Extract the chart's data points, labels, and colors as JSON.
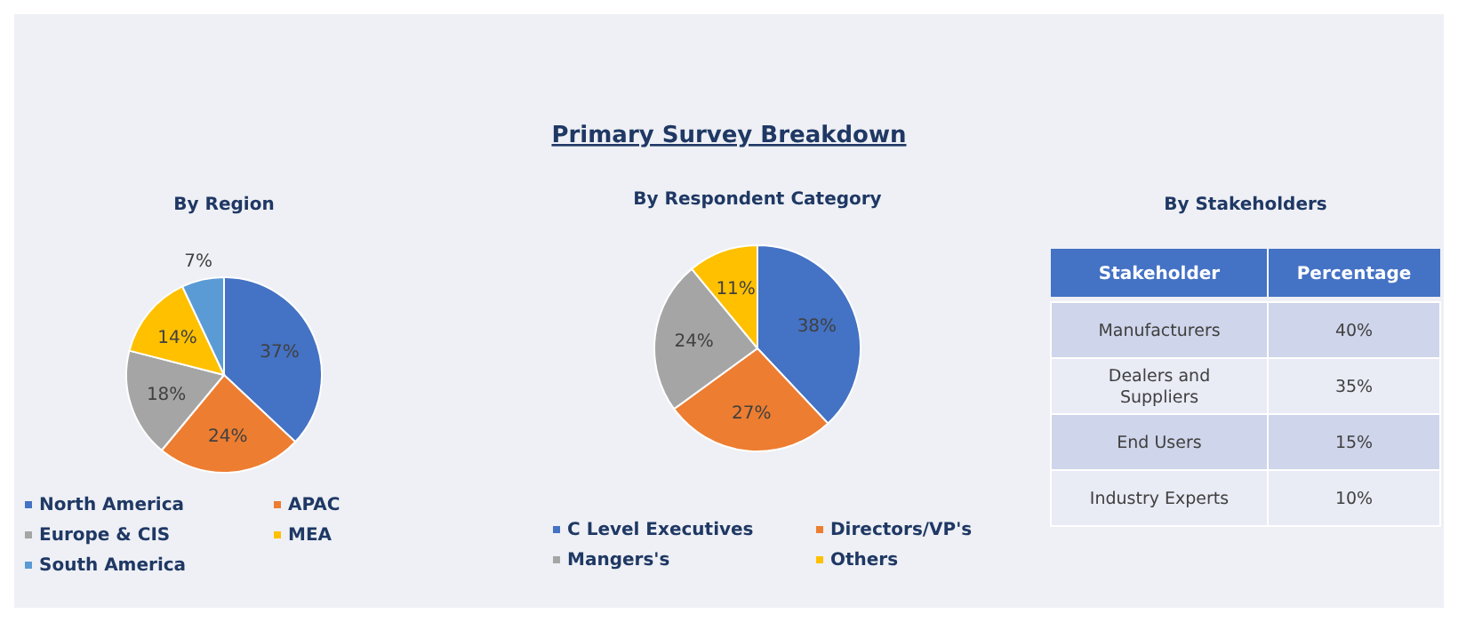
{
  "chart_data": [
    {
      "type": "pie",
      "title": "By Region",
      "categories": [
        "North America",
        "APAC",
        "Europe & CIS",
        "MEA",
        "South America"
      ],
      "values": [
        37,
        24,
        18,
        14,
        7
      ],
      "value_labels": [
        "37%",
        "24%",
        "18%",
        "14%",
        "7%"
      ],
      "colors": [
        "#4472c4",
        "#ed7d31",
        "#a5a5a5",
        "#ffc000",
        "#5b9bd5"
      ],
      "legend": "bottom"
    },
    {
      "type": "pie",
      "title": "Primary Survey Breakdown",
      "subtitle": "By Respondent Category",
      "categories": [
        "C Level Executives",
        "Directors/VP's",
        "Mangers's",
        "Others"
      ],
      "values": [
        38,
        27,
        24,
        11
      ],
      "value_labels": [
        "38%",
        "27%",
        "24%",
        "11%"
      ],
      "colors": [
        "#4472c4",
        "#ed7d31",
        "#a5a5a5",
        "#ffc000"
      ],
      "legend": "bottom"
    },
    {
      "type": "other",
      "title": "By Stakeholders",
      "xlabel": "Stakeholder",
      "ylabel": "Percentage",
      "categories": [
        "Manufacturers",
        "Dealers and Suppliers",
        "End Users",
        "Industry Experts"
      ],
      "value_labels": [
        "40%",
        "35%",
        "15%",
        "10%"
      ]
    }
  ]
}
